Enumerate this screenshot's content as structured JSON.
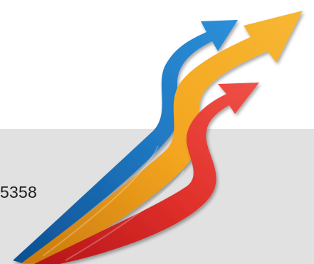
{
  "visible_text": {
    "partial_number": "5358"
  },
  "graphic": {
    "name": "three-swooping-arrows",
    "arrow_colors": {
      "blue": "#1d6fb4",
      "gold": "#f2a51f",
      "red": "#dd2a22"
    }
  },
  "colors": {
    "background_top": "#ffffff",
    "background_band": "#e1e1e1",
    "text": "#1f1f1f"
  }
}
